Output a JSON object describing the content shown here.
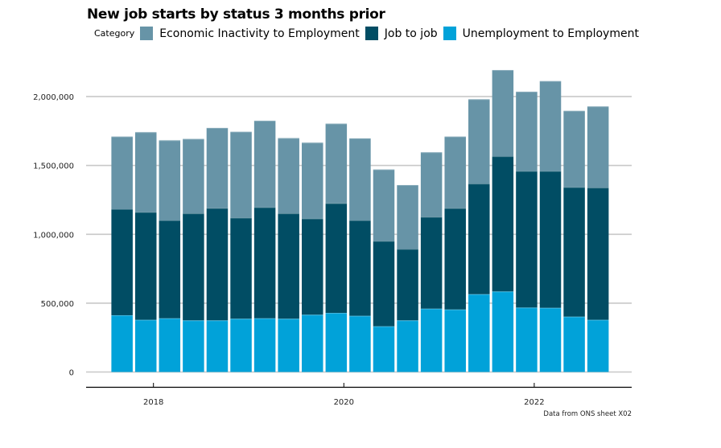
{
  "chart_data": {
    "type": "bar",
    "stacked": true,
    "title": "New job starts by status 3 months prior",
    "legend_title": "Category",
    "legend_position": "top-left",
    "xlabel": "",
    "ylabel": "",
    "ylim": [
      0,
      2200000
    ],
    "yticks": [
      0,
      500000,
      1000000,
      1500000,
      2000000
    ],
    "ytick_labels": [
      "0",
      "500,000",
      "1,000,000",
      "1,500,000",
      "2,000,000"
    ],
    "xticks": [
      2018,
      2020,
      2022
    ],
    "xtick_labels": [
      "2018",
      "2020",
      "2022"
    ],
    "grid": "horizontal",
    "x": [
      2017.67,
      2017.92,
      2018.17,
      2018.42,
      2018.67,
      2018.92,
      2019.17,
      2019.42,
      2019.67,
      2019.92,
      2020.17,
      2020.42,
      2020.67,
      2020.92,
      2021.17,
      2021.42,
      2021.67,
      2021.92,
      2022.17,
      2022.42,
      2022.67
    ],
    "series": [
      {
        "name": "Unemployment to Employment",
        "color": "#01a2d9",
        "values": [
          412000,
          379000,
          390000,
          375000,
          375000,
          387000,
          390000,
          387000,
          416000,
          429000,
          408000,
          332000,
          375000,
          460000,
          454000,
          565000,
          585000,
          468000,
          466000,
          402000,
          379000
        ]
      },
      {
        "name": "Job to job",
        "color": "#014d64",
        "values": [
          771000,
          782000,
          711000,
          777000,
          815000,
          733000,
          806000,
          765000,
          698000,
          796000,
          693000,
          619000,
          518000,
          666000,
          735000,
          803000,
          982000,
          991000,
          993000,
          940000,
          960000
        ]
      },
      {
        "name": "Economic Inactivity to Employment",
        "color": "#6794a7",
        "values": [
          527000,
          581000,
          582000,
          541000,
          583000,
          625000,
          629000,
          547000,
          552000,
          579000,
          596000,
          520000,
          465000,
          470000,
          521000,
          613000,
          626000,
          577000,
          654000,
          555000,
          590000
        ]
      }
    ],
    "legend_order": [
      "Economic Inactivity to Employment",
      "Job to job",
      "Unemployment to Employment"
    ],
    "source_note": "Data from ONS sheet X02"
  }
}
